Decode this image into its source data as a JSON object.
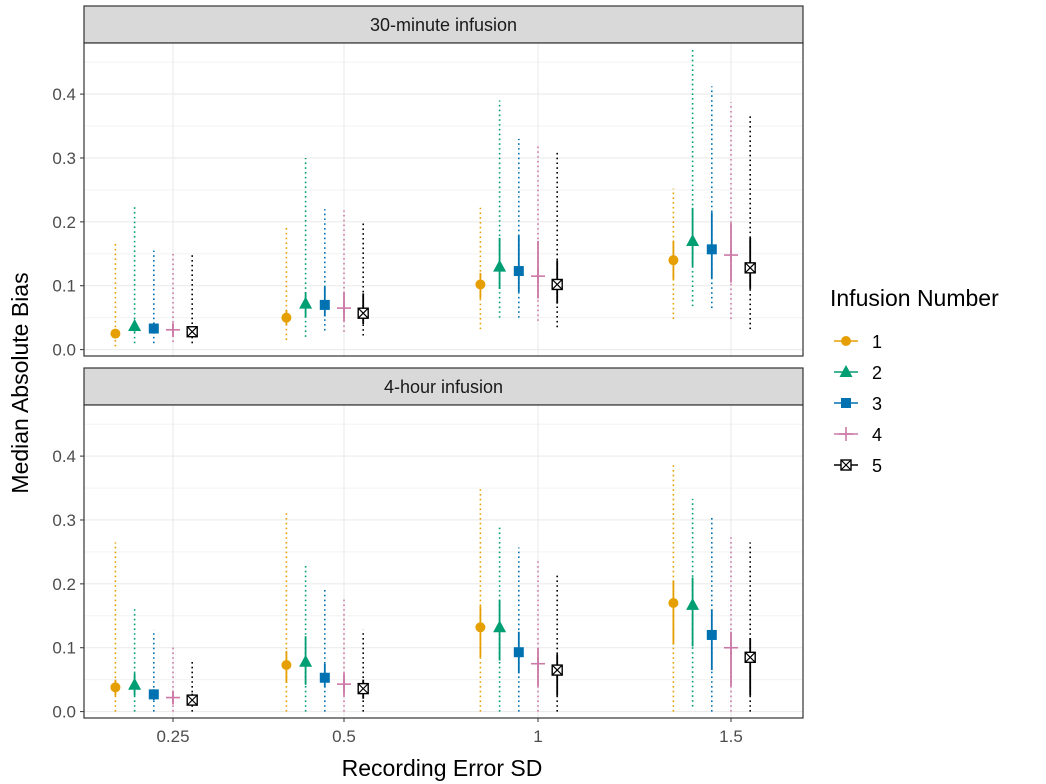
{
  "chart_data": {
    "type": "scatter",
    "xlabel": "Recording Error SD",
    "ylabel": "Median Absolute Bias",
    "x_categories": [
      "0.25",
      "0.5",
      "1",
      "1.5"
    ],
    "y_ticks": [
      "0.0",
      "0.1",
      "0.2",
      "0.3",
      "0.4"
    ],
    "ylim": [
      -0.01,
      0.48
    ],
    "grid": true,
    "legend": {
      "title": "Infusion Number",
      "placement": "right",
      "items": [
        {
          "label": "1",
          "color": "#E69F00",
          "shape": "circle"
        },
        {
          "label": "2",
          "color": "#009E73",
          "shape": "triangle"
        },
        {
          "label": "3",
          "color": "#0072B2",
          "shape": "square"
        },
        {
          "label": "4",
          "color": "#CC79A7",
          "shape": "plus"
        },
        {
          "label": "5",
          "color": "#000000",
          "shape": "boxx"
        }
      ]
    },
    "panels": [
      {
        "title": "30-minute infusion",
        "series": [
          {
            "infusion": "1",
            "median": [
              0.025,
              0.05,
              0.102,
              0.14
            ],
            "q_lo": [
              0.02,
              0.038,
              0.08,
              0.11
            ],
            "q_hi": [
              0.03,
              0.062,
              0.12,
              0.17
            ],
            "w_lo": [
              0.005,
              0.015,
              0.032,
              0.048
            ],
            "w_hi": [
              0.17,
              0.192,
              0.222,
              0.252
            ]
          },
          {
            "infusion": "2",
            "median": [
              0.037,
              0.072,
              0.13,
              0.17
            ],
            "q_lo": [
              0.028,
              0.05,
              0.095,
              0.13
            ],
            "q_hi": [
              0.045,
              0.09,
              0.175,
              0.222
            ],
            "w_lo": [
              0.01,
              0.02,
              0.05,
              0.068
            ],
            "w_hi": [
              0.225,
              0.3,
              0.39,
              0.47
            ]
          },
          {
            "infusion": "3",
            "median": [
              0.033,
              0.07,
              0.123,
              0.157
            ],
            "q_lo": [
              0.025,
              0.052,
              0.09,
              0.112
            ],
            "q_hi": [
              0.042,
              0.098,
              0.178,
              0.215
            ],
            "w_lo": [
              0.01,
              0.03,
              0.05,
              0.065
            ],
            "w_hi": [
              0.155,
              0.22,
              0.33,
              0.412
            ]
          },
          {
            "infusion": "4",
            "median": [
              0.031,
              0.065,
              0.115,
              0.148
            ],
            "q_lo": [
              0.022,
              0.045,
              0.08,
              0.105
            ],
            "q_hi": [
              0.04,
              0.09,
              0.17,
              0.198
            ],
            "w_lo": [
              0.012,
              0.028,
              0.045,
              0.048
            ],
            "w_hi": [
              0.155,
              0.218,
              0.322,
              0.387
            ]
          },
          {
            "infusion": "5",
            "median": [
              0.028,
              0.057,
              0.102,
              0.128
            ],
            "q_lo": [
              0.02,
              0.04,
              0.072,
              0.095
            ],
            "q_hi": [
              0.035,
              0.088,
              0.14,
              0.175
            ],
            "w_lo": [
              0.01,
              0.022,
              0.035,
              0.032
            ],
            "w_hi": [
              0.152,
              0.202,
              0.308,
              0.37
            ]
          }
        ]
      },
      {
        "title": "4-hour infusion",
        "series": [
          {
            "infusion": "1",
            "median": [
              0.038,
              0.073,
              0.132,
              0.17
            ],
            "q_lo": [
              0.025,
              0.045,
              0.085,
              0.105
            ],
            "q_hi": [
              0.05,
              0.095,
              0.165,
              0.205
            ],
            "w_lo": [
              0.0,
              0.0,
              0.0,
              0.0
            ],
            "w_hi": [
              0.265,
              0.313,
              0.352,
              0.39
            ]
          },
          {
            "infusion": "2",
            "median": [
              0.042,
              0.078,
              0.132,
              0.167
            ],
            "q_lo": [
              0.025,
              0.042,
              0.08,
              0.102
            ],
            "q_hi": [
              0.06,
              0.118,
              0.175,
              0.21
            ],
            "w_lo": [
              0.0,
              0.0,
              0.0,
              0.008
            ],
            "w_hi": [
              0.165,
              0.228,
              0.293,
              0.333
            ]
          },
          {
            "infusion": "3",
            "median": [
              0.027,
              0.053,
              0.093,
              0.12
            ],
            "q_lo": [
              0.018,
              0.038,
              0.06,
              0.065
            ],
            "q_hi": [
              0.035,
              0.075,
              0.125,
              0.16
            ],
            "w_lo": [
              0.0,
              0.0,
              0.0,
              0.0
            ],
            "w_hi": [
              0.128,
              0.192,
              0.257,
              0.305
            ]
          },
          {
            "infusion": "4",
            "median": [
              0.022,
              0.043,
              0.075,
              0.1
            ],
            "q_lo": [
              0.012,
              0.025,
              0.04,
              0.04
            ],
            "q_hi": [
              0.03,
              0.06,
              0.1,
              0.125
            ],
            "w_lo": [
              0.0,
              0.0,
              0.0,
              0.0
            ],
            "w_hi": [
              0.102,
              0.178,
              0.24,
              0.275
            ]
          },
          {
            "infusion": "5",
            "median": [
              0.018,
              0.036,
              0.065,
              0.085
            ],
            "q_lo": [
              0.01,
              0.02,
              0.025,
              0.025
            ],
            "q_hi": [
              0.028,
              0.05,
              0.09,
              0.115
            ],
            "w_lo": [
              0.0,
              0.0,
              0.0,
              0.0
            ],
            "w_hi": [
              0.078,
              0.128,
              0.215,
              0.265
            ]
          }
        ]
      }
    ]
  }
}
